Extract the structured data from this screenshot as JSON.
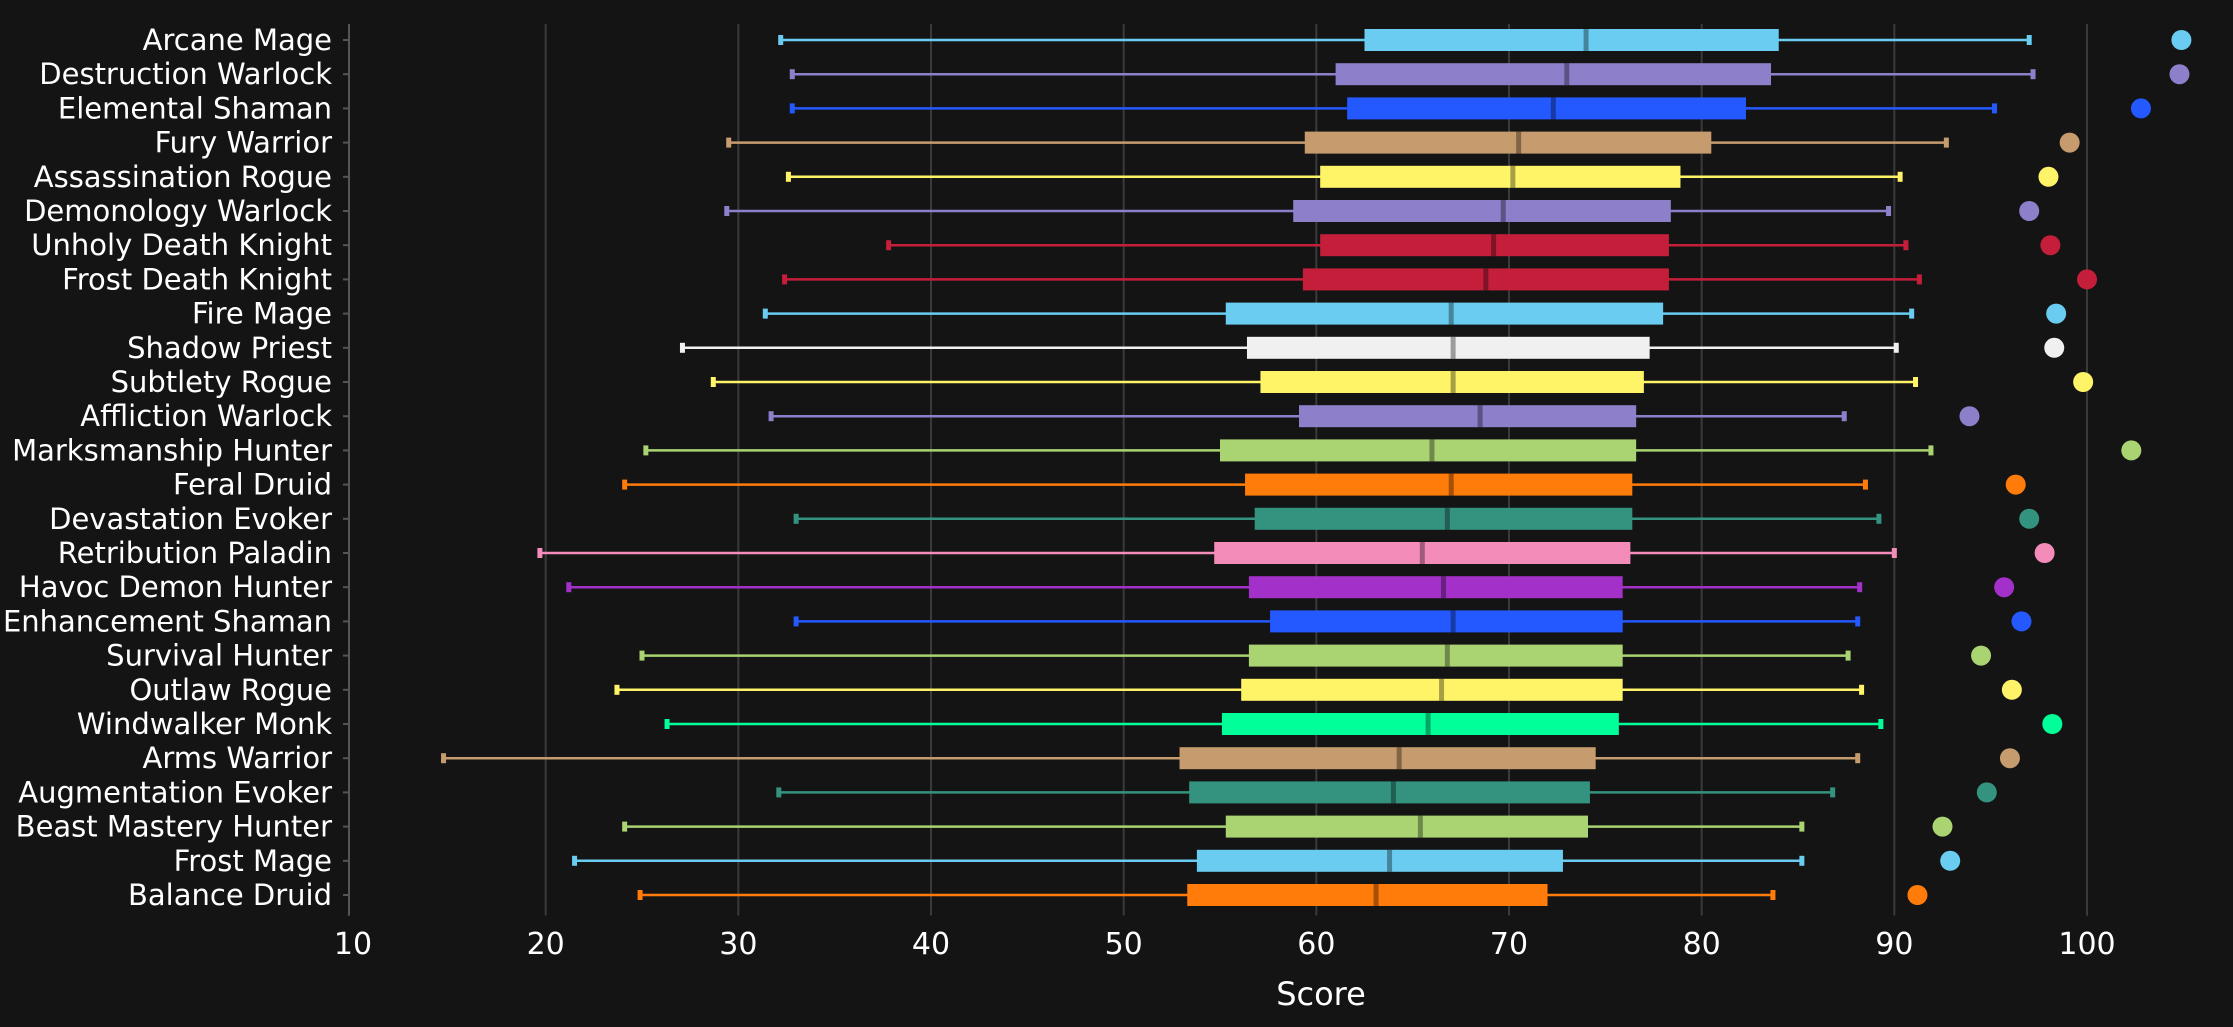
{
  "chart_data": {
    "type": "boxplot",
    "xlabel": "Score",
    "ylabel": "",
    "xlim": [
      10,
      106
    ],
    "xticks": [
      10,
      20,
      30,
      40,
      50,
      60,
      70,
      80,
      90,
      100
    ],
    "grid": "vertical",
    "background": "#141414",
    "series": [
      {
        "name": "Arcane Mage",
        "color": "#69CCF0",
        "min": 32.2,
        "q1": 62.5,
        "median": 74.0,
        "q3": 84.0,
        "max": 97.0,
        "max_point": 104.9
      },
      {
        "name": "Destruction Warlock",
        "color": "#8E7FCB",
        "min": 32.8,
        "q1": 61.0,
        "median": 73.0,
        "q3": 83.6,
        "max": 97.2,
        "max_point": 104.8
      },
      {
        "name": "Elemental Shaman",
        "color": "#2459FF",
        "min": 32.8,
        "q1": 61.6,
        "median": 72.3,
        "q3": 82.3,
        "max": 95.2,
        "max_point": 102.8
      },
      {
        "name": "Fury Warrior",
        "color": "#C69B6D",
        "min": 29.5,
        "q1": 59.4,
        "median": 70.5,
        "q3": 80.5,
        "max": 92.7,
        "max_point": 99.1
      },
      {
        "name": "Assassination Rogue",
        "color": "#FFF468",
        "min": 32.6,
        "q1": 60.2,
        "median": 70.2,
        "q3": 78.9,
        "max": 90.3,
        "max_point": 98.0
      },
      {
        "name": "Demonology Warlock",
        "color": "#8E7FCB",
        "min": 29.4,
        "q1": 58.8,
        "median": 69.7,
        "q3": 78.4,
        "max": 89.7,
        "max_point": 97.0
      },
      {
        "name": "Unholy Death Knight",
        "color": "#C41E3A",
        "min": 37.8,
        "q1": 60.2,
        "median": 69.2,
        "q3": 78.3,
        "max": 90.6,
        "max_point": 98.1
      },
      {
        "name": "Frost Death Knight",
        "color": "#C41E3A",
        "min": 32.4,
        "q1": 59.3,
        "median": 68.8,
        "q3": 78.3,
        "max": 91.3,
        "max_point": 100.0
      },
      {
        "name": "Fire Mage",
        "color": "#69CCF0",
        "min": 31.4,
        "q1": 55.3,
        "median": 67.0,
        "q3": 78.0,
        "max": 90.9,
        "max_point": 98.4
      },
      {
        "name": "Shadow Priest",
        "color": "#F0F0F0",
        "min": 27.1,
        "q1": 56.4,
        "median": 67.1,
        "q3": 77.3,
        "max": 90.1,
        "max_point": 98.3
      },
      {
        "name": "Subtlety Rogue",
        "color": "#FFF468",
        "min": 28.7,
        "q1": 57.1,
        "median": 67.1,
        "q3": 77.0,
        "max": 91.1,
        "max_point": 99.8
      },
      {
        "name": "Affliction Warlock",
        "color": "#8E7FCB",
        "min": 31.7,
        "q1": 59.1,
        "median": 68.5,
        "q3": 76.6,
        "max": 87.4,
        "max_point": 93.9
      },
      {
        "name": "Marksmanship Hunter",
        "color": "#AAD372",
        "min": 25.2,
        "q1": 55.0,
        "median": 66.0,
        "q3": 76.6,
        "max": 91.9,
        "max_point": 102.3
      },
      {
        "name": "Feral Druid",
        "color": "#FF7C0A",
        "min": 24.1,
        "q1": 56.3,
        "median": 67.0,
        "q3": 76.4,
        "max": 88.5,
        "max_point": 96.3
      },
      {
        "name": "Devastation Evoker",
        "color": "#33937F",
        "min": 33.0,
        "q1": 56.8,
        "median": 66.8,
        "q3": 76.4,
        "max": 89.2,
        "max_point": 97.0
      },
      {
        "name": "Retribution Paladin",
        "color": "#F48CBA",
        "min": 19.7,
        "q1": 54.7,
        "median": 65.5,
        "q3": 76.3,
        "max": 90.0,
        "max_point": 97.8
      },
      {
        "name": "Havoc Demon Hunter",
        "color": "#A330C9",
        "min": 21.2,
        "q1": 56.5,
        "median": 66.6,
        "q3": 75.9,
        "max": 88.2,
        "max_point": 95.7
      },
      {
        "name": "Enhancement Shaman",
        "color": "#2459FF",
        "min": 33.0,
        "q1": 57.6,
        "median": 67.1,
        "q3": 75.9,
        "max": 88.1,
        "max_point": 96.6
      },
      {
        "name": "Survival Hunter",
        "color": "#AAD372",
        "min": 25.0,
        "q1": 56.5,
        "median": 66.8,
        "q3": 75.9,
        "max": 87.6,
        "max_point": 94.5
      },
      {
        "name": "Outlaw Rogue",
        "color": "#FFF468",
        "min": 23.7,
        "q1": 56.1,
        "median": 66.5,
        "q3": 75.9,
        "max": 88.3,
        "max_point": 96.1
      },
      {
        "name": "Windwalker Monk",
        "color": "#00FF98",
        "min": 26.3,
        "q1": 55.1,
        "median": 65.8,
        "q3": 75.7,
        "max": 89.3,
        "max_point": 98.2
      },
      {
        "name": "Arms Warrior",
        "color": "#C69B6D",
        "min": 14.7,
        "q1": 52.9,
        "median": 64.3,
        "q3": 74.5,
        "max": 88.1,
        "max_point": 96.0
      },
      {
        "name": "Augmentation Evoker",
        "color": "#33937F",
        "min": 32.1,
        "q1": 53.4,
        "median": 64.0,
        "q3": 74.2,
        "max": 86.8,
        "max_point": 94.8
      },
      {
        "name": "Beast Mastery Hunter",
        "color": "#AAD372",
        "min": 24.1,
        "q1": 55.3,
        "median": 65.4,
        "q3": 74.1,
        "max": 85.2,
        "max_point": 92.5
      },
      {
        "name": "Frost Mage",
        "color": "#69CCF0",
        "min": 21.5,
        "q1": 53.8,
        "median": 63.8,
        "q3": 72.8,
        "max": 85.2,
        "max_point": 92.9
      },
      {
        "name": "Balance Druid",
        "color": "#FF7C0A",
        "min": 24.9,
        "q1": 53.3,
        "median": 63.1,
        "q3": 72.0,
        "max": 83.7,
        "max_point": 91.2
      }
    ]
  }
}
